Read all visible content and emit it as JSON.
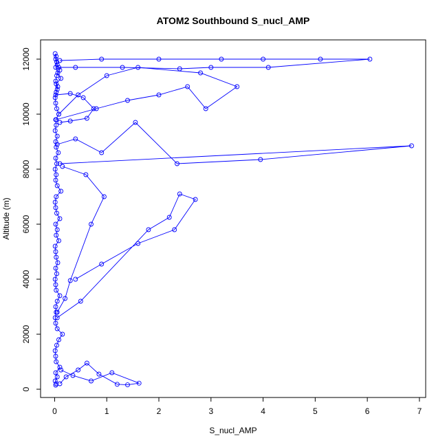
{
  "chart_data": {
    "type": "line",
    "title": "ATOM2 Southbound S_nucl_AMP",
    "xlabel": "S_nucl_AMP",
    "ylabel": "Altitude (m)",
    "xlim": [
      -0.27,
      7.12
    ],
    "ylim": [
      -300,
      12700
    ],
    "xticks": [
      0,
      1,
      2,
      3,
      4,
      5,
      6,
      7
    ],
    "yticks": [
      0,
      2000,
      4000,
      6000,
      8000,
      10000,
      12000
    ],
    "grid": false,
    "legend": "none",
    "color": "#0000ff",
    "marker": "open-circle",
    "series": [
      {
        "x": [
          0.02,
          0.03,
          0.01,
          0.05,
          0.02,
          0.1,
          0.03,
          0.02,
          0.01,
          0.04,
          0.08,
          0.15,
          0.05,
          0.02,
          0.01,
          0.03,
          0.02,
          0.05,
          0.1,
          0.03,
          0.02,
          0.01,
          0.04,
          0.02,
          0.06,
          0.03,
          0.02,
          0.01,
          0.08,
          0.03,
          0.05,
          0.02,
          0.1,
          0.04,
          0.02,
          0.01,
          0.03,
          0.12,
          0.05,
          0.02,
          0.03,
          0.01,
          0.04,
          0.02,
          0.07,
          0.03,
          0.02,
          0.05,
          0.01,
          0.03,
          0.02,
          0.08,
          0.04,
          0.02,
          0.01,
          0.03,
          0.06,
          0.02,
          0.04,
          0.1,
          0.05,
          0.02,
          0.03,
          0.01,
          0.04,
          0.02,
          0.06,
          0.12,
          0.03,
          0.05
        ],
        "y": [
          150,
          200,
          300,
          450,
          600,
          800,
          1000,
          1200,
          1400,
          1600,
          1800,
          2000,
          2200,
          2400,
          2600,
          2800,
          3000,
          3200,
          3400,
          3600,
          3800,
          4000,
          4200,
          4400,
          4600,
          4800,
          5000,
          5200,
          5400,
          5600,
          5800,
          6000,
          6200,
          6400,
          6600,
          6800,
          7000,
          7200,
          7400,
          7600,
          7800,
          8000,
          8200,
          8400,
          8600,
          8800,
          9000,
          9200,
          9400,
          9600,
          9800,
          10000,
          10200,
          10400,
          10600,
          10800,
          11000,
          11200,
          11400,
          11600,
          11800,
          12000,
          12100,
          12200,
          11900,
          11700,
          11500,
          11300,
          11100,
          10900
        ]
      },
      {
        "x": [
          0.1,
          0.22,
          0.45,
          0.62,
          0.85,
          1.2,
          1.4,
          1.62,
          1.1,
          0.7,
          0.35,
          0.12
        ],
        "y": [
          200,
          450,
          700,
          950,
          550,
          180,
          160,
          220,
          600,
          300,
          500,
          700
        ]
      },
      {
        "x": [
          0.05,
          0.5,
          1.8,
          2.2,
          2.4,
          2.7,
          2.3,
          1.6,
          0.9,
          0.4
        ],
        "y": [
          2600,
          3200,
          5800,
          6250,
          7100,
          6900,
          5800,
          5300,
          4550,
          4000
        ]
      },
      {
        "x": [
          0.1,
          6.85,
          3.95,
          2.35,
          1.55,
          0.9,
          0.4,
          0.05
        ],
        "y": [
          8200,
          8850,
          8350,
          8200,
          9700,
          8600,
          9100,
          8900
        ]
      },
      {
        "x": [
          0.03,
          0.8,
          1.4,
          2.0,
          2.55,
          2.9,
          3.5,
          2.8,
          1.6,
          1.0,
          0.45,
          0.08
        ],
        "y": [
          9800,
          10200,
          10500,
          10700,
          11000,
          10200,
          11000,
          11500,
          11700,
          11400,
          10700,
          10000
        ]
      },
      {
        "x": [
          0.1,
          0.9,
          2.0,
          3.2,
          4.0,
          5.1,
          6.05,
          4.1,
          3.0,
          2.4,
          1.3,
          0.4,
          0.08
        ],
        "y": [
          11950,
          12000,
          12000,
          12000,
          12000,
          12000,
          12000,
          11700,
          11700,
          11650,
          11700,
          11700,
          11700
        ]
      },
      {
        "x": [
          0.02,
          0.3,
          0.55,
          0.75,
          0.62,
          0.3,
          0.1
        ],
        "y": [
          10700,
          10750,
          10600,
          10200,
          9850,
          9750,
          9700
        ]
      },
      {
        "x": [
          0.05,
          0.2,
          0.3,
          0.7,
          0.95,
          0.6,
          0.15
        ],
        "y": [
          2800,
          3300,
          3950,
          6000,
          7000,
          7800,
          8100
        ]
      }
    ]
  }
}
